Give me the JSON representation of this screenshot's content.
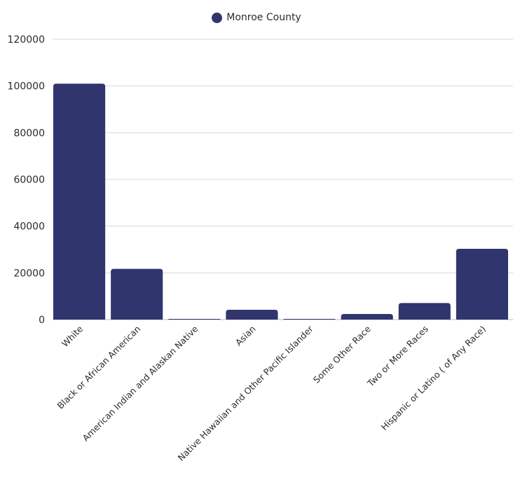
{
  "chart_data": {
    "type": "bar",
    "title": "",
    "xlabel": "",
    "ylabel": "",
    "categories": [
      "White",
      "Black or African American",
      "American Indian and Alaskan Native",
      "Asian",
      "Native Hawaiian and Other Pacific Islander",
      "Some Other Race",
      "Two or More Races",
      "Hispanic or Latino ( of Any Race)"
    ],
    "series": [
      {
        "name": "Monroe County",
        "color": "#31356e",
        "values": [
          101000,
          21700,
          250,
          4200,
          80,
          2400,
          7100,
          30300
        ]
      }
    ],
    "ylim": [
      0,
      120000
    ],
    "yticks": [
      "0",
      "20000",
      "40000",
      "60000",
      "80000",
      "100000",
      "120000"
    ],
    "grid": true,
    "legend_position": "top-center"
  }
}
